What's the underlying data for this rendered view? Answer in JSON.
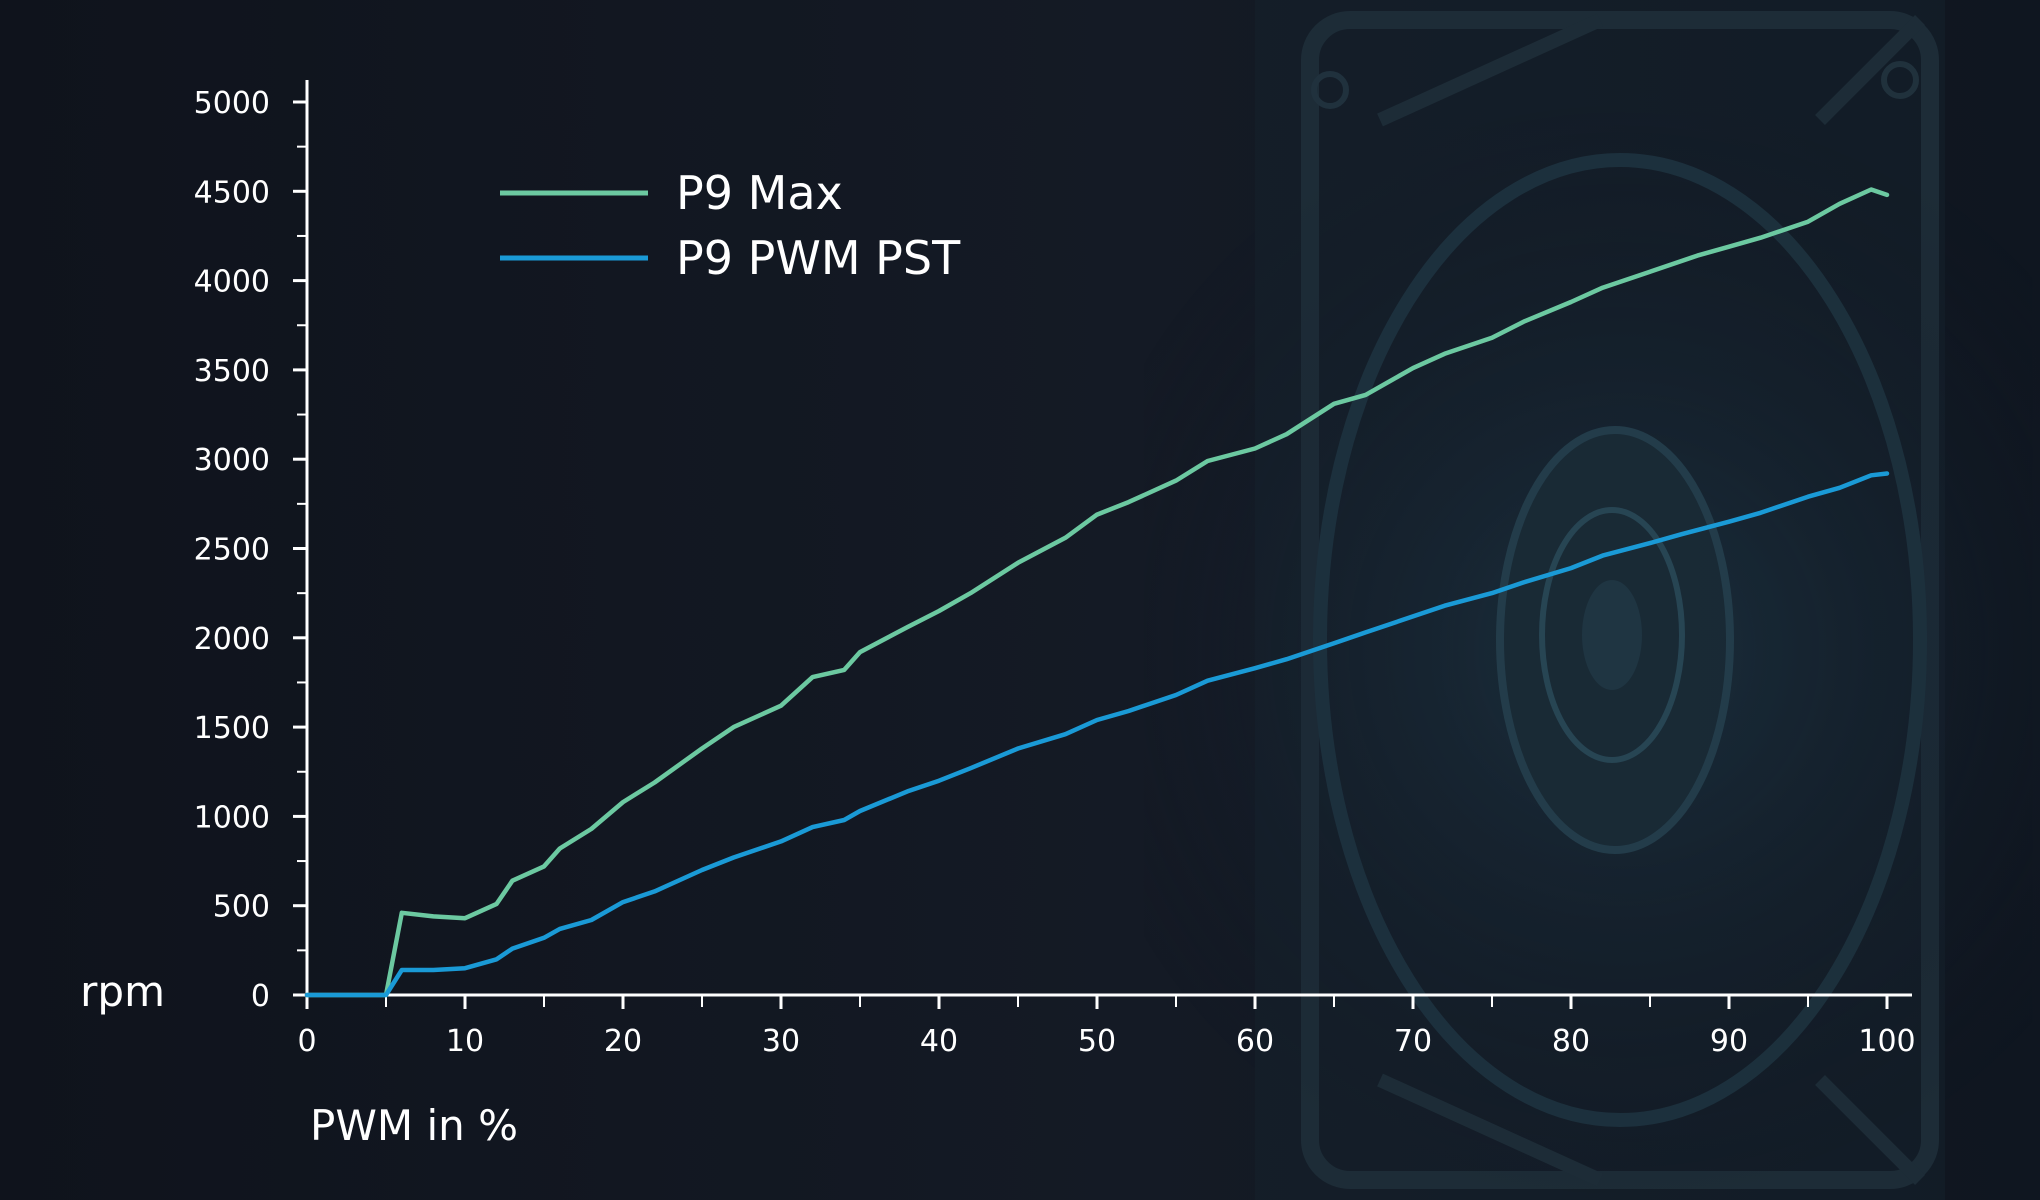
{
  "chart_data": {
    "type": "line",
    "xlabel": "PWM in %",
    "ylabel": "rpm",
    "xlim": [
      0,
      100
    ],
    "ylim": [
      0,
      5000
    ],
    "x_ticks": [
      "0",
      "10",
      "20",
      "30",
      "40",
      "50",
      "60",
      "70",
      "80",
      "90",
      "100"
    ],
    "y_ticks": [
      "0",
      "500",
      "1000",
      "1500",
      "2000",
      "2500",
      "3000",
      "3500",
      "4000",
      "4500",
      "5000"
    ],
    "legend_position": "top-left",
    "grid": false,
    "series": [
      {
        "name": "P9 Max",
        "color": "#6cc9a1",
        "x": [
          0,
          5,
          6,
          8,
          10,
          12,
          13,
          15,
          16,
          18,
          20,
          22,
          25,
          27,
          30,
          32,
          34,
          35,
          38,
          40,
          42,
          45,
          48,
          50,
          52,
          55,
          57,
          60,
          62,
          65,
          67,
          70,
          72,
          75,
          77,
          80,
          82,
          85,
          88,
          90,
          92,
          95,
          97,
          99,
          100
        ],
        "y": [
          0,
          0,
          460,
          440,
          430,
          510,
          640,
          720,
          820,
          930,
          1080,
          1190,
          1380,
          1500,
          1620,
          1780,
          1820,
          1920,
          2060,
          2150,
          2250,
          2420,
          2560,
          2690,
          2760,
          2880,
          2990,
          3060,
          3140,
          3310,
          3360,
          3510,
          3590,
          3680,
          3770,
          3880,
          3960,
          4050,
          4140,
          4190,
          4240,
          4330,
          4430,
          4510,
          4480
        ]
      },
      {
        "name": "P9 PWM PST",
        "color": "#1a9ad6",
        "x": [
          0,
          5,
          6,
          8,
          10,
          12,
          13,
          15,
          16,
          18,
          20,
          22,
          25,
          27,
          30,
          32,
          34,
          35,
          38,
          40,
          42,
          45,
          48,
          50,
          52,
          55,
          57,
          60,
          62,
          65,
          67,
          70,
          72,
          75,
          77,
          80,
          82,
          85,
          87,
          90,
          92,
          95,
          97,
          99,
          100
        ],
        "y": [
          0,
          0,
          140,
          140,
          150,
          200,
          260,
          320,
          370,
          420,
          520,
          580,
          700,
          770,
          860,
          940,
          980,
          1030,
          1140,
          1200,
          1270,
          1380,
          1460,
          1540,
          1590,
          1680,
          1760,
          1830,
          1880,
          1970,
          2030,
          2120,
          2180,
          2250,
          2310,
          2390,
          2460,
          2530,
          2580,
          2650,
          2700,
          2790,
          2840,
          2910,
          2920
        ]
      }
    ]
  }
}
